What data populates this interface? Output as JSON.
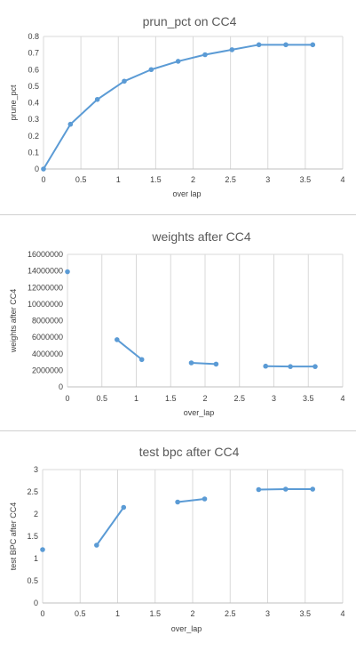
{
  "chart_data": [
    {
      "type": "line",
      "title": "prun_pct on CC4",
      "xlabel": "over lap",
      "ylabel": "prune_pct",
      "xlim": [
        0,
        4
      ],
      "ylim": [
        0,
        0.8
      ],
      "x_ticks": [
        "0",
        "0.5",
        "1",
        "1.5",
        "2",
        "2.5",
        "3",
        "3.5",
        "4"
      ],
      "y_ticks": [
        "0",
        "0.1",
        "0.2",
        "0.3",
        "0.4",
        "0.5",
        "0.6",
        "0.7",
        "0.8"
      ],
      "grid": "vertical",
      "color": "#5b9bd5",
      "segments": [
        [
          [
            0,
            0
          ],
          [
            0.36,
            0.27
          ],
          [
            0.72,
            0.42
          ],
          [
            1.08,
            0.53
          ],
          [
            1.44,
            0.6
          ],
          [
            1.8,
            0.65
          ],
          [
            2.16,
            0.69
          ],
          [
            2.52,
            0.72
          ],
          [
            2.88,
            0.75
          ],
          [
            3.24,
            0.75
          ],
          [
            3.6,
            0.75
          ]
        ]
      ]
    },
    {
      "type": "line",
      "title": "weights after CC4",
      "xlabel": "over_lap",
      "ylabel": "weights after CC4",
      "xlim": [
        0,
        4
      ],
      "ylim": [
        0,
        16000000
      ],
      "x_ticks": [
        "0",
        "0.5",
        "1",
        "1.5",
        "2",
        "2.5",
        "3",
        "3.5",
        "4"
      ],
      "y_ticks": [
        "0",
        "2000000",
        "4000000",
        "6000000",
        "8000000",
        "10000000",
        "12000000",
        "14000000",
        "16000000"
      ],
      "grid": "vertical",
      "color": "#5b9bd5",
      "segments": [
        [
          [
            0,
            13900000
          ]
        ],
        [
          [
            0.72,
            5700000
          ],
          [
            1.08,
            3300000
          ]
        ],
        [
          [
            1.8,
            2900000
          ],
          [
            2.16,
            2750000
          ]
        ],
        [
          [
            2.88,
            2500000
          ],
          [
            3.24,
            2450000
          ],
          [
            3.6,
            2450000
          ]
        ]
      ]
    },
    {
      "type": "line",
      "title": "test bpc after CC4",
      "xlabel": "over_lap",
      "ylabel": "test BPC after CC4",
      "xlim": [
        0,
        4
      ],
      "ylim": [
        0,
        3
      ],
      "x_ticks": [
        "0",
        "0.5",
        "1",
        "1.5",
        "2",
        "2.5",
        "3",
        "3.5",
        "4"
      ],
      "y_ticks": [
        "0",
        "0.5",
        "1",
        "1.5",
        "2",
        "2.5",
        "3"
      ],
      "grid": "vertical",
      "color": "#5b9bd5",
      "segments": [
        [
          [
            0,
            1.2
          ]
        ],
        [
          [
            0.72,
            1.3
          ],
          [
            1.08,
            2.15
          ]
        ],
        [
          [
            1.8,
            2.27
          ],
          [
            2.16,
            2.34
          ]
        ],
        [
          [
            2.88,
            2.55
          ],
          [
            3.24,
            2.56
          ],
          [
            3.6,
            2.56
          ]
        ]
      ]
    }
  ]
}
